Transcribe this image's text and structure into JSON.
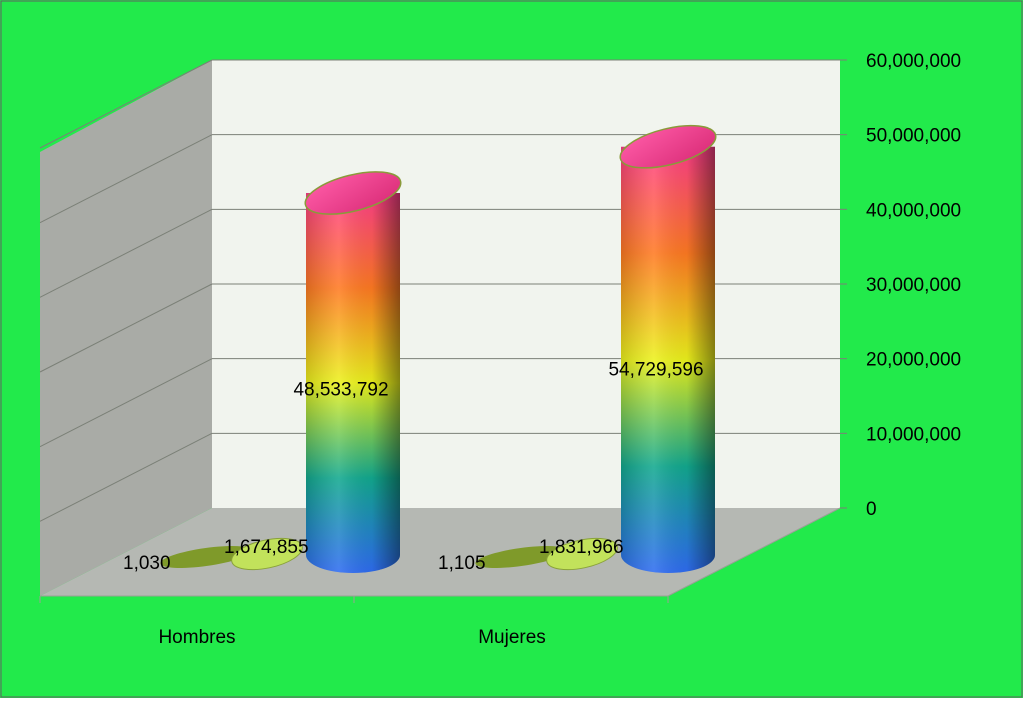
{
  "colors": {
    "background": "#22ea4b",
    "back_wall": "#f1f4ee",
    "side_wall": "#a9aba6",
    "floor": "#b5b8b3",
    "gridline": "#7b8077",
    "small_disc": "#7f9a2a",
    "medium_disc": "#c2e25b"
  },
  "chart_data": {
    "type": "bar",
    "style": "3d-cylinder",
    "categories": [
      "Hombres",
      "Mujeres"
    ],
    "series": [
      {
        "values": [
          1030,
          1105
        ],
        "labels": [
          "1,030",
          "1,105"
        ]
      },
      {
        "values": [
          1674855,
          1831966
        ],
        "labels": [
          "1,674,855",
          "1,831,966"
        ]
      },
      {
        "values": [
          48533792,
          54729596
        ],
        "labels": [
          "48,533,792",
          "54,729,596"
        ]
      }
    ],
    "y_axis": {
      "min": 0,
      "max": 60000000,
      "ticks": [
        0,
        10000000,
        20000000,
        30000000,
        40000000,
        50000000,
        60000000
      ],
      "tick_labels": [
        "0",
        "10,000,000",
        "20,000,000",
        "30,000,000",
        "40,000,000",
        "50,000,000",
        "60,000,000"
      ],
      "position": "right"
    },
    "grid": true,
    "legend": "none",
    "title": "",
    "xlabel": "",
    "ylabel": ""
  }
}
